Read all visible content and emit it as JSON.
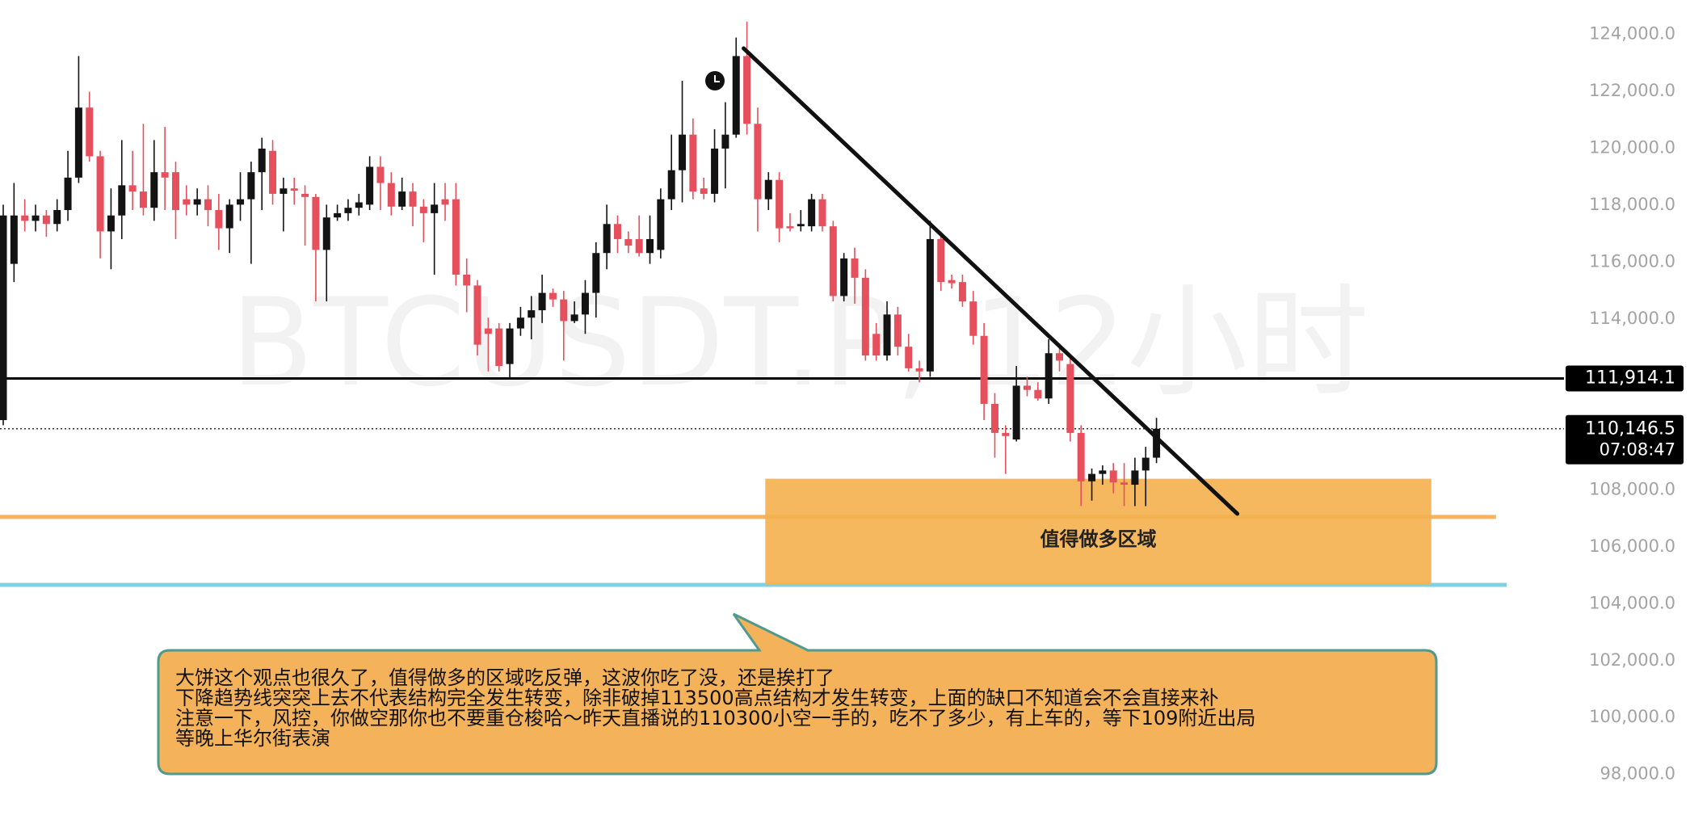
{
  "chart_data": {
    "type": "candlestick",
    "watermark": "BTCUSDT.P, 12小时",
    "open": [
      110450,
      115940,
      117640,
      117450,
      117640,
      117340,
      117830,
      118970,
      121430,
      119720,
      117080,
      117640,
      118700,
      118480,
      117910,
      119160,
      119160,
      118210,
      118020,
      118210,
      117830,
      117190,
      118020,
      118210,
      119160,
      119910,
      118400,
      118590,
      118400,
      118290,
      116430,
      117570,
      117720,
      117910,
      118020,
      119350,
      118780,
      117950,
      118480,
      117950,
      117720,
      118210,
      118210,
      115560,
      115180,
      113670,
      113670,
      112420,
      113670,
      114050,
      114310,
      114920,
      114690,
      113930,
      114160,
      114920,
      116320,
      117340,
      116810,
      116810,
      116320,
      116430,
      118210,
      119230,
      120480,
      118590,
      118400,
      119990,
      120480,
      123240,
      120860,
      118210,
      118890,
      117260,
      117260,
      117260,
      118210,
      117260,
      114810,
      116130,
      115450,
      113480,
      112720,
      114160,
      113030,
      112270,
      112160,
      116810,
      115370,
      115300,
      114620,
      113410,
      111020,
      110000,
      109770,
      111660,
      111510,
      111210,
      112800,
      112420,
      110000,
      108300,
      108560,
      108680,
      108260,
      108180,
      108680,
      109130
    ],
    "high": [
      118020,
      118780,
      118210,
      118020,
      117830,
      118210,
      119910,
      123240,
      121990,
      119910,
      118590,
      120290,
      119910,
      120860,
      120290,
      120750,
      119530,
      118700,
      118590,
      118700,
      118400,
      118210,
      119160,
      119530,
      120370,
      120290,
      118970,
      118970,
      118700,
      118400,
      118020,
      118020,
      118210,
      118400,
      119720,
      119720,
      119160,
      118970,
      118780,
      118210,
      118780,
      118780,
      118780,
      116130,
      115370,
      114050,
      113860,
      113860,
      114430,
      114810,
      115560,
      115070,
      114990,
      114620,
      115370,
      116700,
      118020,
      117640,
      117080,
      117640,
      117640,
      118590,
      120480,
      122370,
      121050,
      118970,
      120670,
      121620,
      123890,
      124450,
      121430,
      119160,
      119160,
      117720,
      117830,
      118400,
      118400,
      117450,
      116320,
      116510,
      115750,
      113860,
      114620,
      114430,
      113480,
      112540,
      117450,
      117080,
      115560,
      115560,
      114990,
      113860,
      111400,
      110270,
      112350,
      111970,
      111780,
      113290,
      113100,
      112720,
      110270,
      108750,
      108860,
      108940,
      108940,
      109130,
      109510,
      110530
    ],
    "low": [
      110270,
      115300,
      117080,
      117080,
      116890,
      117080,
      117450,
      118780,
      119530,
      116130,
      115750,
      116810,
      117830,
      117640,
      117450,
      117830,
      116810,
      117640,
      117640,
      117260,
      116430,
      116320,
      117450,
      115940,
      117830,
      118020,
      117080,
      118020,
      116580,
      114620,
      114620,
      117450,
      117450,
      117640,
      117830,
      117830,
      117640,
      117830,
      117260,
      116700,
      115560,
      117450,
      115180,
      114240,
      112720,
      112160,
      112160,
      111890,
      113410,
      113290,
      113860,
      114430,
      112540,
      113860,
      113480,
      114050,
      115750,
      116320,
      116320,
      116200,
      115940,
      116130,
      117830,
      118100,
      118210,
      118210,
      118100,
      118590,
      120370,
      120480,
      117080,
      117830,
      116700,
      117080,
      117080,
      117080,
      117080,
      114620,
      114620,
      114540,
      112540,
      112540,
      112540,
      112720,
      112160,
      111780,
      111970,
      114990,
      115070,
      114430,
      113100,
      110450,
      109130,
      108560,
      109700,
      111290,
      111130,
      111020,
      112160,
      109700,
      107430,
      107620,
      108180,
      107880,
      107430,
      107430,
      107430,
      108940
    ],
    "close": [
      117640,
      117640,
      117450,
      117640,
      117340,
      117830,
      118970,
      121430,
      119720,
      117080,
      117640,
      118700,
      118480,
      117910,
      119160,
      118970,
      117830,
      118020,
      118210,
      117830,
      117190,
      118020,
      118210,
      119160,
      119990,
      118400,
      118590,
      118510,
      118290,
      116430,
      117570,
      117720,
      117910,
      118100,
      119350,
      118780,
      117950,
      118480,
      117950,
      117720,
      118020,
      118020,
      115560,
      115180,
      113100,
      113480,
      112350,
      113670,
      114050,
      114310,
      114920,
      114690,
      113930,
      114160,
      114920,
      116320,
      117340,
      116810,
      116580,
      116320,
      116810,
      118210,
      119230,
      120480,
      118480,
      118400,
      119990,
      120480,
      123240,
      120860,
      118210,
      118890,
      117190,
      117190,
      117340,
      118210,
      117260,
      114810,
      116130,
      115450,
      112720,
      112720,
      114160,
      113030,
      112270,
      112160,
      116810,
      115300,
      115260,
      114620,
      113410,
      111020,
      110000,
      109890,
      111660,
      111510,
      111210,
      112800,
      112540,
      110000,
      108300,
      108560,
      108680,
      108260,
      108180,
      108680,
      109130,
      110146.5
    ],
    "up_color": "#131313",
    "down_color": "#e5505c",
    "xlim": [
      -0.3,
      156.5
    ],
    "ylim": [
      96260,
      125210
    ],
    "yticks": [
      {
        "value": 124000,
        "label": "124,000.0"
      },
      {
        "value": 122000,
        "label": "122,000.0"
      },
      {
        "value": 120000,
        "label": "120,000.0"
      },
      {
        "value": 118000,
        "label": "118,000.0"
      },
      {
        "value": 116000,
        "label": "116,000.0"
      },
      {
        "value": 114000,
        "label": "114,000.0"
      },
      {
        "value": 112000,
        "label": "112,000.0"
      },
      {
        "value": 110000,
        "label": "110,000.0"
      },
      {
        "value": 108000,
        "label": "108,000.0"
      },
      {
        "value": 106000,
        "label": "106,000.0"
      },
      {
        "value": 104000,
        "label": "104,000.0"
      },
      {
        "value": 102000,
        "label": "102,000.0"
      },
      {
        "value": 100000,
        "label": "100,000.0"
      },
      {
        "value": 98000,
        "label": "98,000.0"
      }
    ],
    "price_line": {
      "value": 111914.1,
      "label": "111,914.1",
      "color": "#000000"
    },
    "last_price": {
      "value": 110146.5,
      "label": "110,146.5",
      "countdown": "07:08:47"
    },
    "levels": [
      {
        "value": 107050,
        "x_end": 138.5,
        "color": "#f5a845"
      },
      {
        "value": 104660,
        "x_end": 139.5,
        "color": "#6cc9de"
      }
    ],
    "zone": {
      "x": [
        70.7,
        132.5
      ],
      "y": [
        104660,
        108390
      ],
      "label": "值得做多区域",
      "color": "#f4b04e"
    },
    "trendline": {
      "x": [
        68.7,
        114.5
      ],
      "y": [
        123510,
        107160
      ]
    }
  },
  "note": {
    "lines": [
      "大饼这个观点也很久了，值得做多的区域吃反弹，这波你吃了没，还是挨打了",
      "下降趋势线突突上去不代表结构完全发生转变，除非破掉113500高点结构才发生转变，上面的缺口不知道会不会直接来补",
      "注意一下，风控，你做空那你也不要重仓梭哈～昨天直播说的110300小空一手的，吃不了多少，有上车的，等下109附近出局",
      "等晚上华尔街表演"
    ]
  }
}
